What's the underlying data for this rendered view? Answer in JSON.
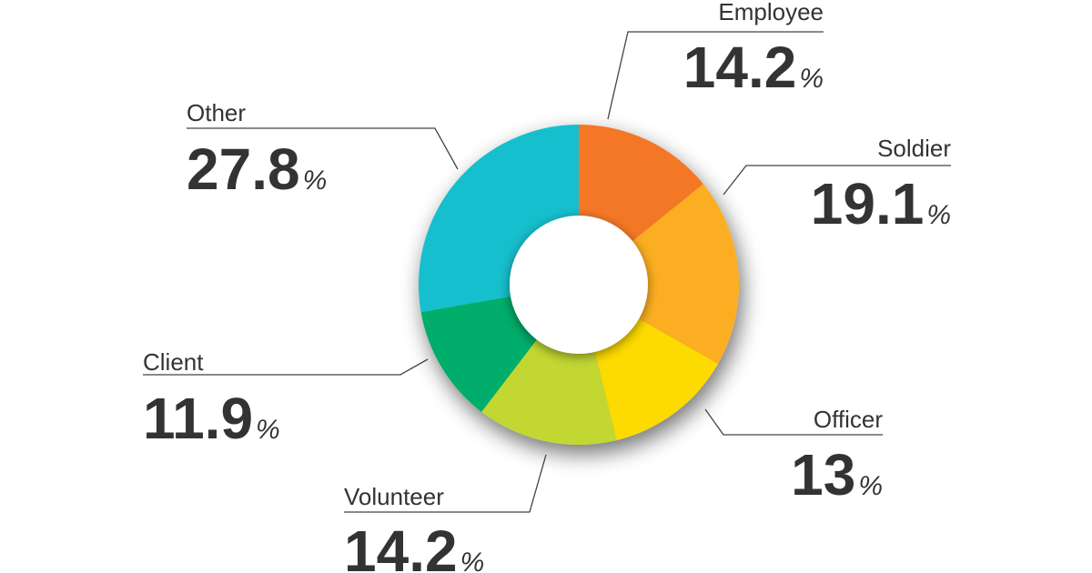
{
  "chart_data": {
    "type": "pie",
    "variant": "donut",
    "unit": "%",
    "slices": [
      {
        "label": "Employee",
        "value": 14.2,
        "display": "14.2",
        "color": "#F47725"
      },
      {
        "label": "Soldier",
        "value": 19.1,
        "display": "19.1",
        "color": "#FBAE22"
      },
      {
        "label": "Officer",
        "value": 13,
        "display": "13",
        "color": "#FDDA00"
      },
      {
        "label": "Volunteer",
        "value": 14.2,
        "display": "14.2",
        "color": "#C2D730"
      },
      {
        "label": "Client",
        "value": 11.9,
        "display": "11.9",
        "color": "#00AD6A"
      },
      {
        "label": "Other",
        "value": 27.8,
        "display": "27.8",
        "color": "#18BFCD"
      }
    ]
  }
}
